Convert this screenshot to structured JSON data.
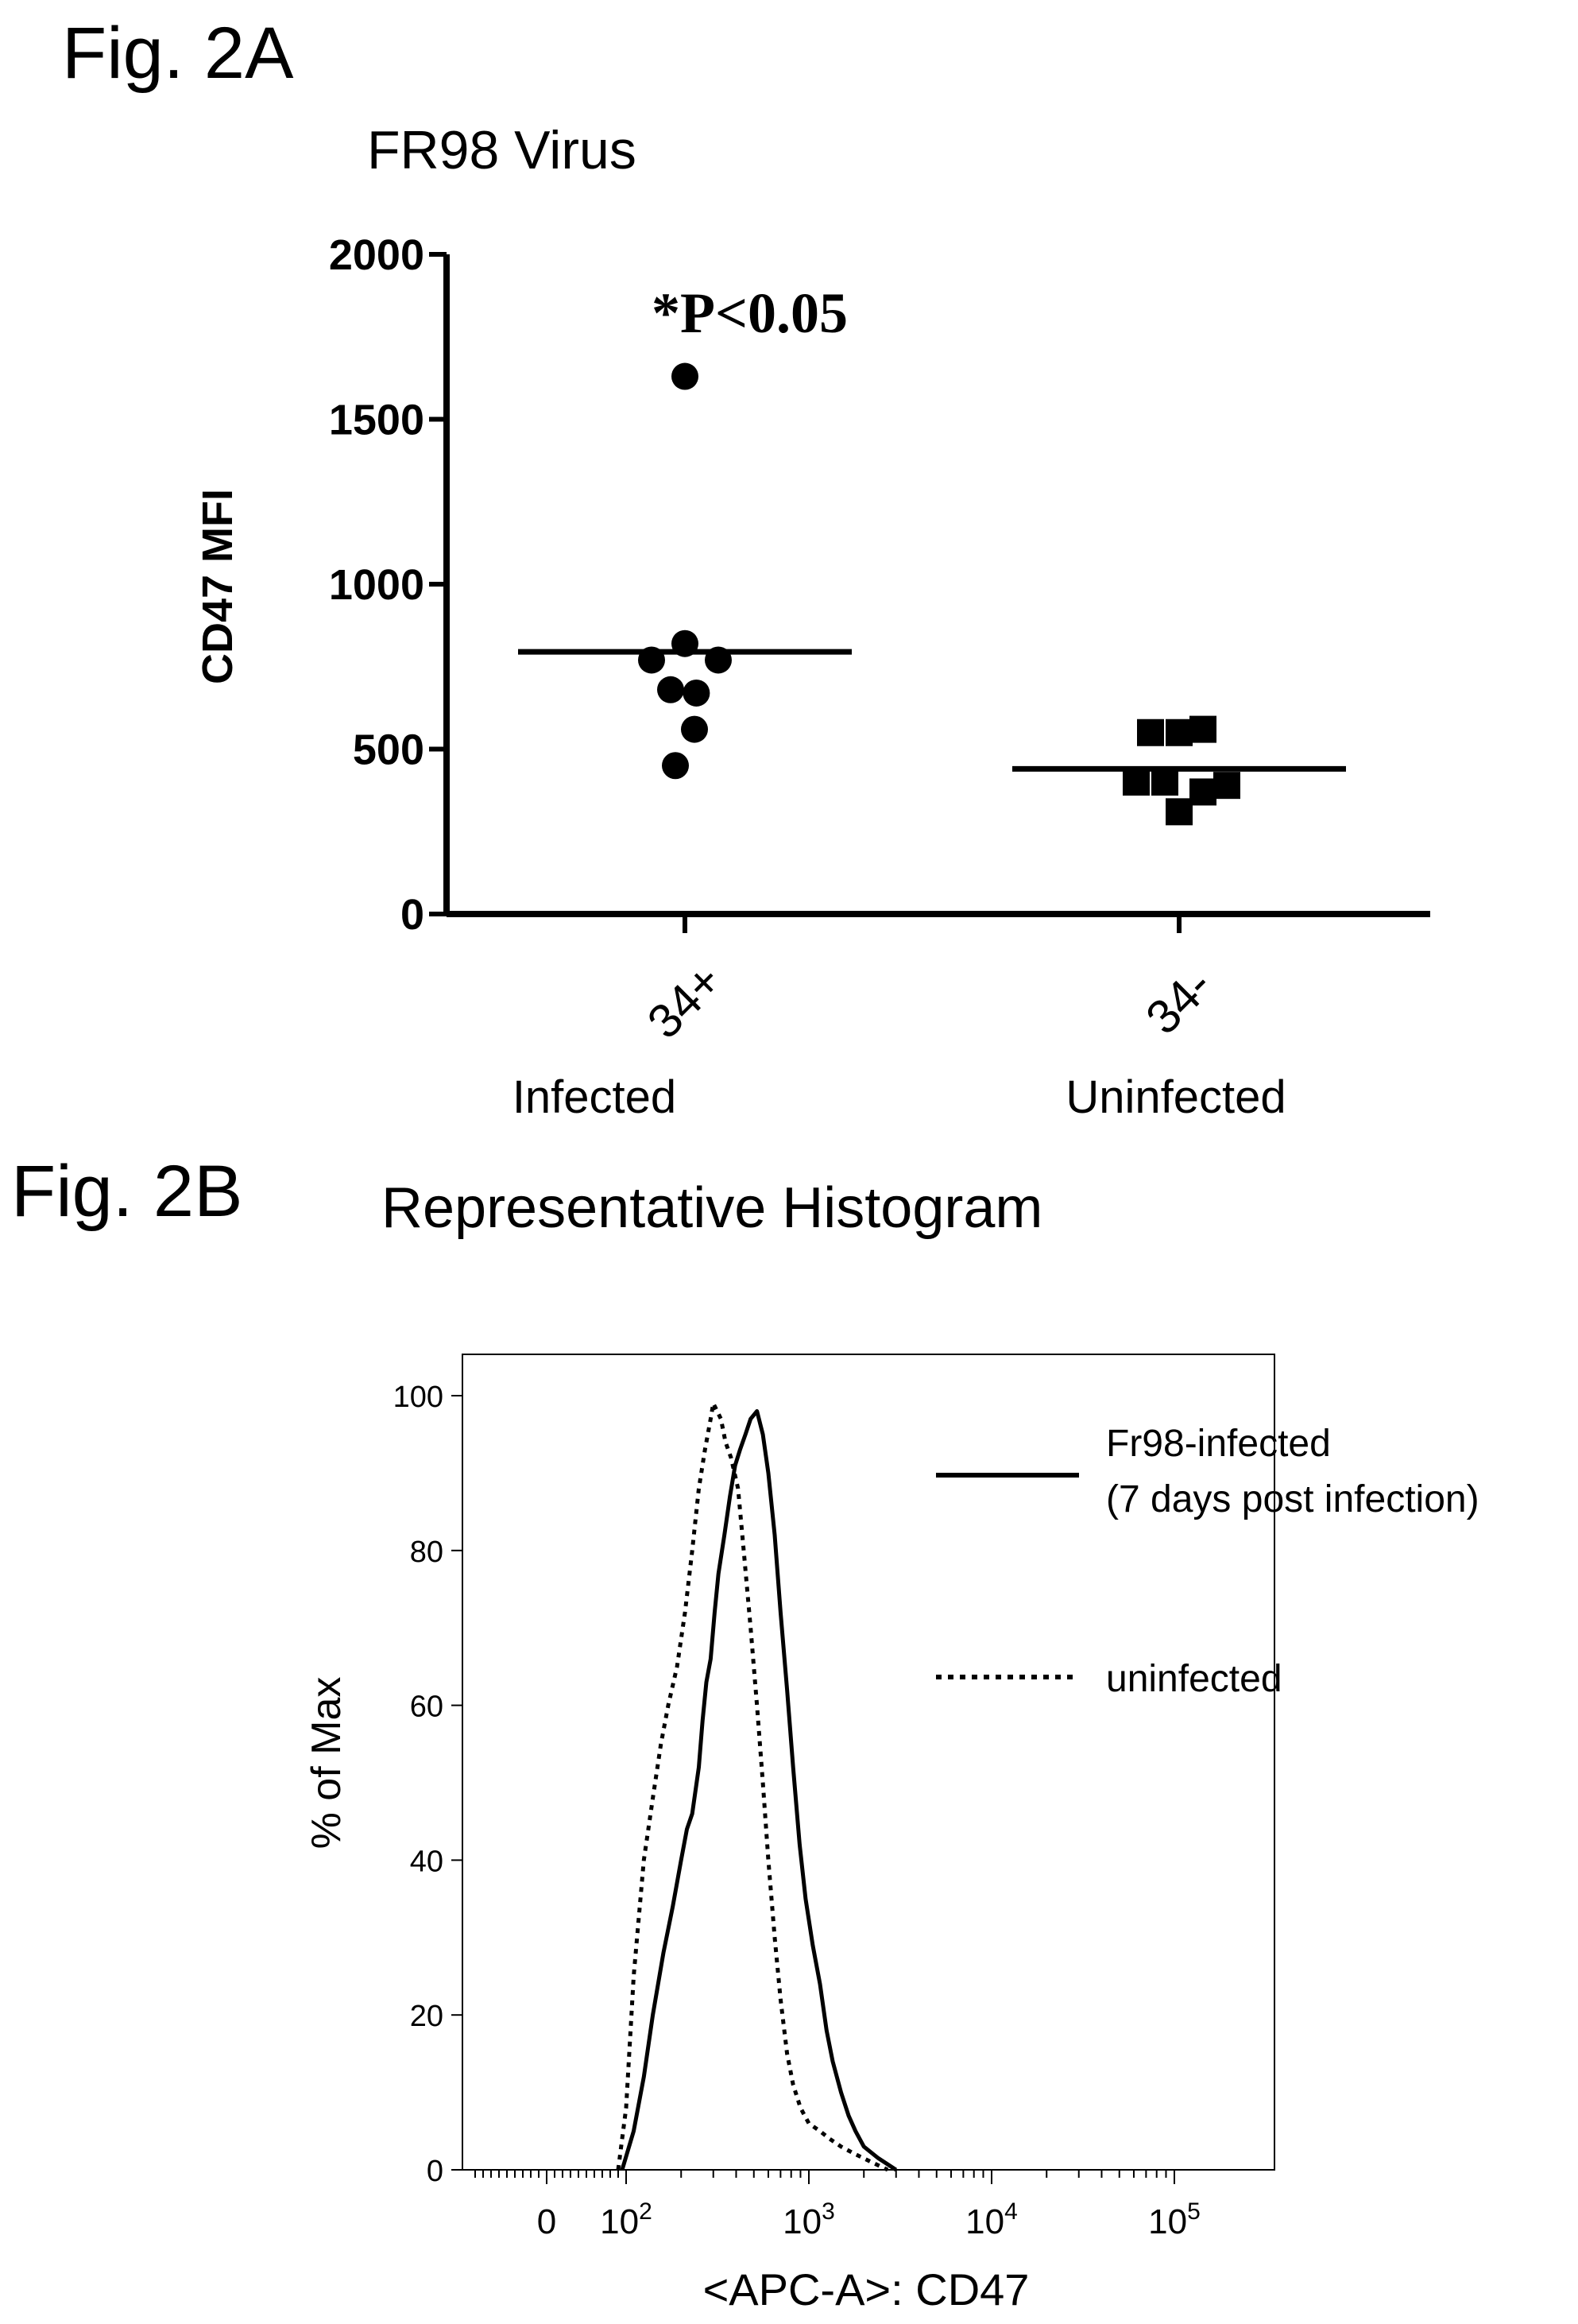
{
  "panel_a": {
    "fig_label": "Fig. 2A",
    "title": "FR98 Virus",
    "annotation": "*P<0.05",
    "group_labels": [
      "Infected",
      "Uninfected"
    ],
    "chart_data": {
      "type": "scatter",
      "ylabel": "CD47 MFI",
      "ylim": [
        0,
        2000
      ],
      "y_ticks": [
        "0",
        "500",
        "1000",
        "1500",
        "2000"
      ],
      "categories": [
        "34+",
        "34-"
      ],
      "series": [
        {
          "category": "34+",
          "marker": "circle",
          "values": [
            1630,
            770,
            820,
            680,
            670,
            770,
            560,
            450
          ],
          "jitter": [
            0,
            -0.35,
            0,
            -0.15,
            0.12,
            0.35,
            0.1,
            -0.1
          ],
          "mean": 795
        },
        {
          "category": "34-",
          "marker": "square",
          "values": [
            550,
            550,
            560,
            400,
            400,
            310,
            370,
            390
          ],
          "jitter": [
            -0.3,
            0,
            0.25,
            -0.45,
            -0.15,
            0,
            0.25,
            0.5
          ],
          "mean": 440
        }
      ]
    }
  },
  "panel_b": {
    "fig_label": "Fig. 2B",
    "title": "Representative Histogram",
    "chart_data": {
      "type": "line",
      "xlabel": "<APC-A>: CD47",
      "ylabel": "% of Max",
      "x_scale": "biexponential",
      "ylim": [
        0,
        100
      ],
      "y_ticks": [
        "0",
        "20",
        "40",
        "60",
        "80",
        "100"
      ],
      "x_ticks": [
        {
          "value": 0,
          "label": "0"
        },
        {
          "value": 100,
          "label": "10",
          "sup": "2"
        },
        {
          "value": 1000,
          "label": "10",
          "sup": "3"
        },
        {
          "value": 10000,
          "label": "10",
          "sup": "4"
        },
        {
          "value": 100000,
          "label": "10",
          "sup": "5"
        }
      ],
      "legend": {
        "placement": "top-right",
        "entries": [
          {
            "style": "solid",
            "lines": [
              "Fr98-infected",
              "(7 days post infection)"
            ]
          },
          {
            "style": "dotted",
            "lines": [
              "uninfected"
            ]
          }
        ]
      },
      "series": [
        {
          "name": "Fr98-infected",
          "style": "solid",
          "points": [
            [
              95,
              0
            ],
            [
              110,
              5
            ],
            [
              125,
              12
            ],
            [
              140,
              20
            ],
            [
              160,
              28
            ],
            [
              180,
              34
            ],
            [
              200,
              40
            ],
            [
              215,
              44
            ],
            [
              230,
              46
            ],
            [
              250,
              52
            ],
            [
              262,
              58
            ],
            [
              275,
              63
            ],
            [
              290,
              66
            ],
            [
              305,
              72
            ],
            [
              320,
              77
            ],
            [
              345,
              82
            ],
            [
              370,
              87
            ],
            [
              395,
              91
            ],
            [
              420,
              93
            ],
            [
              450,
              95
            ],
            [
              480,
              97
            ],
            [
              520,
              98
            ],
            [
              560,
              95
            ],
            [
              600,
              90
            ],
            [
              650,
              82
            ],
            [
              700,
              72
            ],
            [
              760,
              62
            ],
            [
              820,
              52
            ],
            [
              890,
              42
            ],
            [
              960,
              35
            ],
            [
              1050,
              29
            ],
            [
              1150,
              24
            ],
            [
              1250,
              18
            ],
            [
              1350,
              14
            ],
            [
              1500,
              10
            ],
            [
              1650,
              7
            ],
            [
              1800,
              5
            ],
            [
              2000,
              3
            ],
            [
              2400,
              1.5
            ],
            [
              3000,
              0
            ]
          ]
        },
        {
          "name": "uninfected",
          "style": "dotted",
          "points": [
            [
              90,
              0
            ],
            [
              100,
              8
            ],
            [
              110,
              25
            ],
            [
              125,
              40
            ],
            [
              140,
              48
            ],
            [
              155,
              55
            ],
            [
              170,
              60
            ],
            [
              190,
              65
            ],
            [
              210,
              72
            ],
            [
              230,
              80
            ],
            [
              250,
              88
            ],
            [
              270,
              93
            ],
            [
              290,
              97
            ],
            [
              300,
              99
            ],
            [
              315,
              98
            ],
            [
              330,
              97
            ],
            [
              350,
              94
            ],
            [
              375,
              92
            ],
            [
              410,
              88
            ],
            [
              440,
              80
            ],
            [
              480,
              70
            ],
            [
              520,
              60
            ],
            [
              560,
              50
            ],
            [
              600,
              40
            ],
            [
              650,
              30
            ],
            [
              700,
              22
            ],
            [
              760,
              15
            ],
            [
              820,
              11
            ],
            [
              900,
              8
            ],
            [
              1000,
              6
            ],
            [
              1150,
              5
            ],
            [
              1300,
              4
            ],
            [
              1500,
              3
            ],
            [
              1800,
              2
            ],
            [
              2200,
              1
            ],
            [
              2700,
              0
            ]
          ]
        }
      ]
    }
  }
}
